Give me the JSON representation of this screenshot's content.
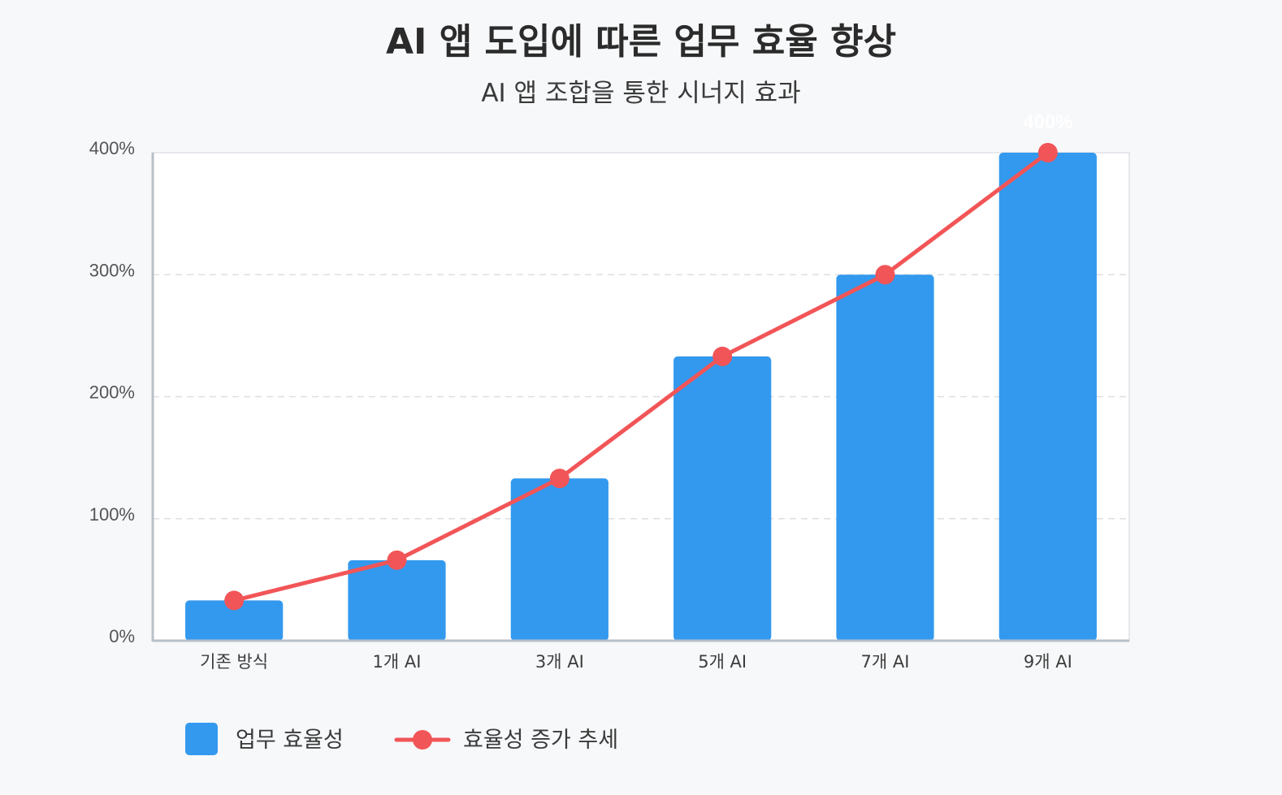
{
  "chart_data": {
    "type": "bar",
    "title": "AI 앱 도입에 따른 업무 효율 향상",
    "subtitle": "AI 앱 조합을 통한 시너지 효과",
    "categories": [
      "기존 방식",
      "1개 AI",
      "3개 AI",
      "5개 AI",
      "7개 AI",
      "9개 AI"
    ],
    "series": [
      {
        "name": "업무 효율성",
        "kind": "bar",
        "color": "#3399ee",
        "values": [
          33,
          66,
          133,
          233,
          300,
          400
        ]
      },
      {
        "name": "효율성 증가 추세",
        "kind": "line",
        "color": "#f25557",
        "values": [
          33,
          66,
          133,
          233,
          300,
          400
        ]
      }
    ],
    "ylim": [
      0,
      400
    ],
    "yticks": [
      0,
      100,
      200,
      300,
      400
    ],
    "ytick_labels": [
      "0%",
      "100%",
      "200%",
      "300%",
      "400%"
    ],
    "data_labels": [
      {
        "category": "9개 AI",
        "text": "400%"
      }
    ],
    "grid": {
      "y": true,
      "style": "dashed"
    },
    "legend_position": "bottom-left",
    "colors": {
      "axis": "#b8bfc7",
      "grid": "#dcdfe3",
      "plot_bg": "#ffffff",
      "page_bg": "#f7f8fa"
    }
  }
}
